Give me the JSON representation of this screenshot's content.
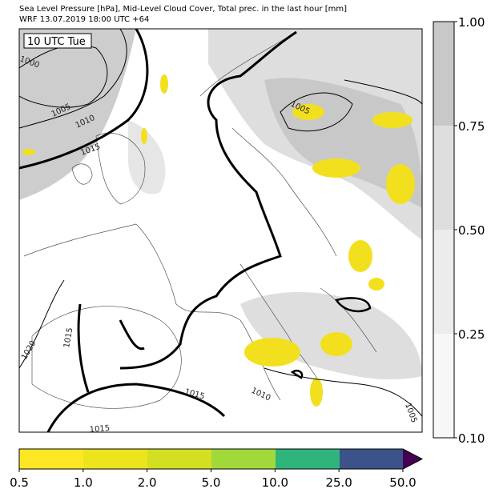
{
  "header": {
    "title_line1": "Sea Level Pressure [hPa], Mid-Level Cloud Cover, Total prec. in the last hour [mm]",
    "title_line2": "WRF 13.07.2019 18:00 UTC +64"
  },
  "map": {
    "time_label": "10 UTC Tue",
    "contour_labels": [
      "1000",
      "1005",
      "1010",
      "1015",
      "1005",
      "1020",
      "1015",
      "1010",
      "1015",
      "1015",
      "1005"
    ]
  },
  "cloud_colorbar": {
    "labels": [
      "1.00",
      "0.75",
      "0.50",
      "0.25",
      "0.10"
    ]
  },
  "precip_colorbar": {
    "labels": [
      "0.5",
      "1.0",
      "2.0",
      "5.0",
      "10.0",
      "25.0",
      "50.0"
    ]
  }
}
